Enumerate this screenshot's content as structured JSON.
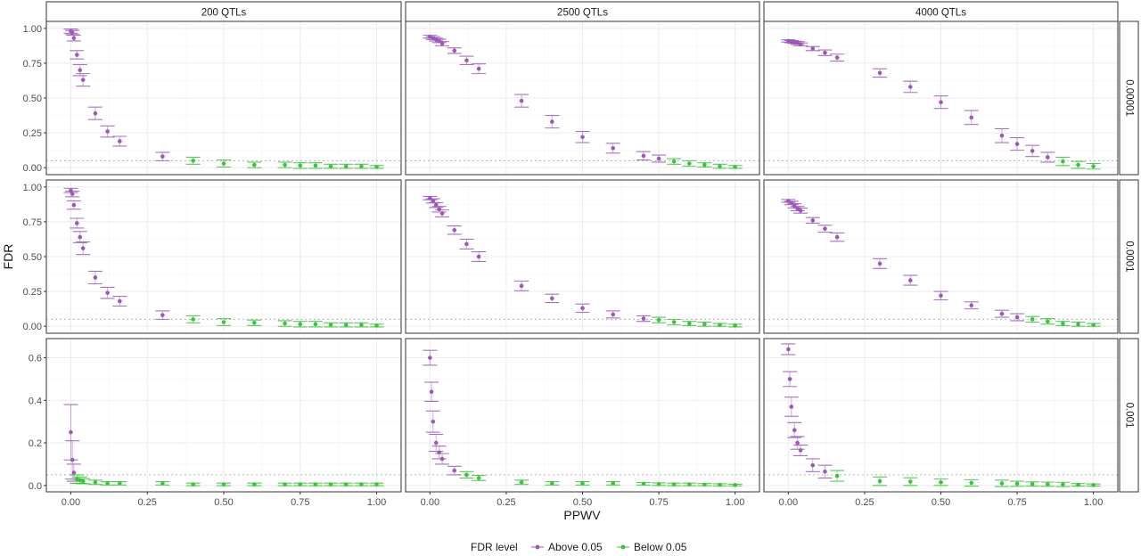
{
  "chart_data": {
    "type": "scatter",
    "xlabel": "PPWV",
    "ylabel": "FDR",
    "reference_line": 0.05,
    "xlim": [
      -0.08,
      1.08
    ],
    "x_ticks": [
      "0.00",
      "0.25",
      "0.50",
      "0.75",
      "1.00"
    ],
    "x_tick_values": [
      0,
      0.25,
      0.5,
      0.75,
      1.0
    ],
    "columns": [
      "200 QTLs",
      "2500 QTLs",
      "4000 QTLs"
    ],
    "rows": [
      {
        "label": "0.00001",
        "ylim": [
          -0.05,
          1.05
        ],
        "y_ticks": [
          "0.00",
          "0.25",
          "0.50",
          "0.75",
          "1.00"
        ],
        "y_tick_values": [
          0,
          0.25,
          0.5,
          0.75,
          1.0
        ]
      },
      {
        "label": "0.0001",
        "ylim": [
          -0.05,
          1.05
        ],
        "y_ticks": [
          "0.00",
          "0.25",
          "0.50",
          "0.75",
          "1.00"
        ],
        "y_tick_values": [
          0,
          0.25,
          0.5,
          0.75,
          1.0
        ]
      },
      {
        "label": "0.001",
        "ylim": [
          -0.03,
          0.69
        ],
        "y_ticks": [
          "0.0",
          "0.2",
          "0.4",
          "0.6"
        ],
        "y_tick_values": [
          0,
          0.2,
          0.4,
          0.6
        ]
      }
    ],
    "legend": {
      "title": "FDR level",
      "placement": "bottom",
      "entries": [
        {
          "label": "Above 0.05",
          "color": "#9b59b6"
        },
        {
          "label": "Below 0.05",
          "color": "#3cc33c"
        }
      ]
    },
    "panels": [
      {
        "row": 0,
        "col": 0,
        "x": [
          0,
          0.005,
          0.01,
          0.02,
          0.03,
          0.04,
          0.08,
          0.12,
          0.16,
          0.3,
          0.4,
          0.5,
          0.6,
          0.7,
          0.75,
          0.8,
          0.85,
          0.9,
          0.95,
          1.0
        ],
        "y": [
          0.98,
          0.97,
          0.93,
          0.81,
          0.7,
          0.63,
          0.39,
          0.26,
          0.19,
          0.08,
          0.05,
          0.03,
          0.02,
          0.02,
          0.015,
          0.015,
          0.01,
          0.01,
          0.01,
          0.005
        ],
        "err": [
          0.015,
          0.015,
          0.02,
          0.03,
          0.04,
          0.045,
          0.045,
          0.04,
          0.035,
          0.03,
          0.025,
          0.025,
          0.02,
          0.02,
          0.02,
          0.02,
          0.015,
          0.015,
          0.015,
          0.01
        ]
      },
      {
        "row": 0,
        "col": 1,
        "x": [
          0,
          0.01,
          0.02,
          0.03,
          0.04,
          0.08,
          0.12,
          0.16,
          0.3,
          0.4,
          0.5,
          0.6,
          0.7,
          0.75,
          0.8,
          0.85,
          0.9,
          0.95,
          1.0
        ],
        "y": [
          0.94,
          0.93,
          0.92,
          0.91,
          0.89,
          0.84,
          0.77,
          0.71,
          0.48,
          0.33,
          0.22,
          0.14,
          0.085,
          0.065,
          0.045,
          0.03,
          0.02,
          0.01,
          0.005
        ],
        "err": [
          0.01,
          0.01,
          0.01,
          0.012,
          0.015,
          0.02,
          0.03,
          0.035,
          0.045,
          0.045,
          0.04,
          0.035,
          0.03,
          0.025,
          0.02,
          0.02,
          0.015,
          0.015,
          0.01
        ]
      },
      {
        "row": 0,
        "col": 2,
        "x": [
          0,
          0.01,
          0.02,
          0.03,
          0.04,
          0.08,
          0.12,
          0.16,
          0.3,
          0.4,
          0.5,
          0.6,
          0.7,
          0.75,
          0.8,
          0.85,
          0.9,
          0.95,
          1.0
        ],
        "y": [
          0.91,
          0.905,
          0.9,
          0.895,
          0.885,
          0.855,
          0.825,
          0.79,
          0.68,
          0.58,
          0.47,
          0.36,
          0.23,
          0.17,
          0.12,
          0.075,
          0.045,
          0.02,
          0.01
        ],
        "err": [
          0.008,
          0.008,
          0.008,
          0.01,
          0.01,
          0.015,
          0.02,
          0.025,
          0.03,
          0.04,
          0.045,
          0.05,
          0.05,
          0.045,
          0.04,
          0.035,
          0.03,
          0.025,
          0.02
        ]
      },
      {
        "row": 1,
        "col": 0,
        "x": [
          0,
          0.005,
          0.01,
          0.02,
          0.03,
          0.04,
          0.08,
          0.12,
          0.16,
          0.3,
          0.4,
          0.5,
          0.6,
          0.7,
          0.75,
          0.8,
          0.85,
          0.9,
          0.95,
          1.0
        ],
        "y": [
          0.975,
          0.95,
          0.87,
          0.74,
          0.64,
          0.56,
          0.35,
          0.24,
          0.18,
          0.08,
          0.05,
          0.03,
          0.025,
          0.02,
          0.015,
          0.015,
          0.01,
          0.01,
          0.01,
          0.005
        ],
        "err": [
          0.015,
          0.02,
          0.03,
          0.035,
          0.04,
          0.045,
          0.045,
          0.04,
          0.035,
          0.03,
          0.025,
          0.025,
          0.02,
          0.02,
          0.02,
          0.02,
          0.015,
          0.015,
          0.015,
          0.01
        ]
      },
      {
        "row": 1,
        "col": 1,
        "x": [
          0,
          0.01,
          0.02,
          0.03,
          0.04,
          0.08,
          0.12,
          0.16,
          0.3,
          0.4,
          0.5,
          0.6,
          0.7,
          0.75,
          0.8,
          0.85,
          0.9,
          0.95,
          1.0
        ],
        "y": [
          0.92,
          0.9,
          0.87,
          0.84,
          0.81,
          0.69,
          0.59,
          0.5,
          0.29,
          0.2,
          0.13,
          0.085,
          0.055,
          0.045,
          0.03,
          0.02,
          0.015,
          0.01,
          0.005
        ],
        "err": [
          0.012,
          0.015,
          0.018,
          0.02,
          0.025,
          0.03,
          0.035,
          0.035,
          0.035,
          0.03,
          0.03,
          0.025,
          0.02,
          0.02,
          0.02,
          0.015,
          0.015,
          0.01,
          0.01
        ]
      },
      {
        "row": 1,
        "col": 2,
        "x": [
          0,
          0.01,
          0.02,
          0.03,
          0.04,
          0.08,
          0.12,
          0.16,
          0.3,
          0.4,
          0.5,
          0.6,
          0.7,
          0.75,
          0.8,
          0.85,
          0.9,
          0.95,
          1.0
        ],
        "y": [
          0.9,
          0.885,
          0.865,
          0.845,
          0.83,
          0.76,
          0.7,
          0.64,
          0.45,
          0.33,
          0.22,
          0.15,
          0.09,
          0.065,
          0.05,
          0.035,
          0.02,
          0.015,
          0.01
        ],
        "err": [
          0.01,
          0.012,
          0.015,
          0.015,
          0.018,
          0.02,
          0.025,
          0.03,
          0.035,
          0.035,
          0.03,
          0.025,
          0.025,
          0.025,
          0.02,
          0.02,
          0.015,
          0.015,
          0.01
        ]
      },
      {
        "row": 2,
        "col": 0,
        "x": [
          0,
          0.005,
          0.01,
          0.02,
          0.03,
          0.04,
          0.08,
          0.12,
          0.16,
          0.3,
          0.4,
          0.5,
          0.6,
          0.7,
          0.75,
          0.8,
          0.85,
          0.9,
          0.95,
          1.0
        ],
        "y": [
          0.25,
          0.12,
          0.06,
          0.03,
          0.025,
          0.02,
          0.015,
          0.01,
          0.01,
          0.01,
          0.005,
          0.005,
          0.005,
          0.005,
          0.005,
          0.005,
          0.005,
          0.005,
          0.005,
          0.005
        ],
        "err": [
          0.13,
          0.09,
          0.04,
          0.02,
          0.015,
          0.012,
          0.01,
          0.008,
          0.008,
          0.008,
          0.006,
          0.006,
          0.006,
          0.006,
          0.006,
          0.006,
          0.006,
          0.006,
          0.006,
          0.006
        ]
      },
      {
        "row": 2,
        "col": 1,
        "x": [
          0,
          0.005,
          0.01,
          0.02,
          0.03,
          0.04,
          0.08,
          0.12,
          0.16,
          0.3,
          0.4,
          0.5,
          0.6,
          0.7,
          0.75,
          0.8,
          0.85,
          0.9,
          0.95,
          1.0
        ],
        "y": [
          0.6,
          0.44,
          0.3,
          0.2,
          0.155,
          0.125,
          0.07,
          0.05,
          0.035,
          0.015,
          0.01,
          0.01,
          0.01,
          0.008,
          0.006,
          0.005,
          0.005,
          0.004,
          0.003,
          0.002
        ],
        "err": [
          0.035,
          0.045,
          0.05,
          0.04,
          0.03,
          0.025,
          0.02,
          0.015,
          0.012,
          0.01,
          0.008,
          0.008,
          0.008,
          0.006,
          0.006,
          0.006,
          0.006,
          0.005,
          0.005,
          0.004
        ]
      },
      {
        "row": 2,
        "col": 2,
        "x": [
          0,
          0.005,
          0.01,
          0.02,
          0.03,
          0.04,
          0.08,
          0.12,
          0.16,
          0.3,
          0.4,
          0.5,
          0.6,
          0.7,
          0.75,
          0.8,
          0.85,
          0.9,
          0.95,
          1.0
        ],
        "y": [
          0.64,
          0.5,
          0.37,
          0.26,
          0.2,
          0.165,
          0.095,
          0.065,
          0.045,
          0.02,
          0.018,
          0.015,
          0.012,
          0.01,
          0.008,
          0.007,
          0.006,
          0.005,
          0.003,
          0.002
        ],
        "err": [
          0.025,
          0.035,
          0.045,
          0.035,
          0.03,
          0.025,
          0.03,
          0.03,
          0.025,
          0.02,
          0.018,
          0.015,
          0.015,
          0.015,
          0.012,
          0.01,
          0.01,
          0.01,
          0.006,
          0.005
        ]
      }
    ]
  }
}
